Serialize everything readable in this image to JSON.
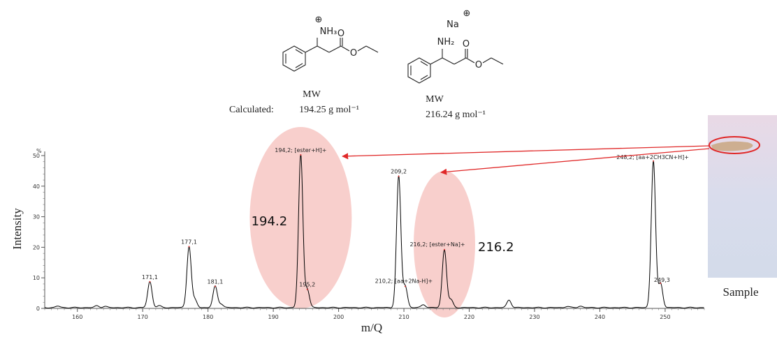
{
  "chart_data": {
    "type": "line",
    "xlabel": "m/Q",
    "ylabel": "Intensity",
    "y_unit": "%",
    "xlim": [
      155,
      256
    ],
    "ylim": [
      0,
      50
    ],
    "x_ticks": [
      160,
      170,
      180,
      190,
      200,
      210,
      220,
      230,
      240,
      250
    ],
    "y_ticks": [
      0,
      10,
      20,
      30,
      40,
      50
    ],
    "grid": false,
    "peaks": [
      {
        "x": 157.0,
        "y": 0.5
      },
      {
        "x": 163.0,
        "y": 0.6
      },
      {
        "x": 164.2,
        "y": 0.4
      },
      {
        "x": 171.1,
        "y": 8.5,
        "label": "171,1"
      },
      {
        "x": 172.5,
        "y": 0.6
      },
      {
        "x": 177.1,
        "y": 20.0,
        "label": "177,1"
      },
      {
        "x": 178.0,
        "y": 2.5
      },
      {
        "x": 181.1,
        "y": 7.0,
        "label": "181,1"
      },
      {
        "x": 182.0,
        "y": 1.2
      },
      {
        "x": 194.2,
        "y": 50.0,
        "label": "194,2; [ester+H]+"
      },
      {
        "x": 195.2,
        "y": 6.0,
        "label": "195,2"
      },
      {
        "x": 209.2,
        "y": 43.0,
        "label": "209,2"
      },
      {
        "x": 210.2,
        "y": 7.0,
        "label": "210,2; [aa+2Na-H]+"
      },
      {
        "x": 213.0,
        "y": 1.0
      },
      {
        "x": 216.2,
        "y": 19.0,
        "label": "216,2; [ester+Na]+"
      },
      {
        "x": 217.2,
        "y": 2.5
      },
      {
        "x": 226.1,
        "y": 2.5
      },
      {
        "x": 235.0,
        "y": 0.4
      },
      {
        "x": 237.0,
        "y": 0.5
      },
      {
        "x": 248.2,
        "y": 48.0,
        "label": "248,2; [aa+2CH3CN+H]+"
      },
      {
        "x": 249.3,
        "y": 8.0,
        "label": "249,3"
      }
    ],
    "highlights": [
      {
        "center_x": 194.2,
        "label": "194.2",
        "color": "#f7c7c3"
      },
      {
        "center_x": 216.2,
        "label": "216.2",
        "color": "#f7c7c3"
      }
    ],
    "line_color": "#000000",
    "peak_label_color": "#e03030"
  },
  "structures": {
    "left": {
      "charge": "⊕",
      "amine": "NH₃",
      "carbonyl": "O",
      "ester_o": "O",
      "mw": "MW",
      "value": "194.25 g mol⁻¹"
    },
    "right": {
      "cation": "Na",
      "charge": "⊕",
      "amine": "NH₂",
      "carbonyl": "O",
      "ester_o": "O",
      "mw": "MW",
      "value": "216.24 g mol⁻¹"
    },
    "calculated_label": "Calculated:"
  },
  "sample": {
    "caption": "Sample",
    "color": "#e6e3f0"
  }
}
